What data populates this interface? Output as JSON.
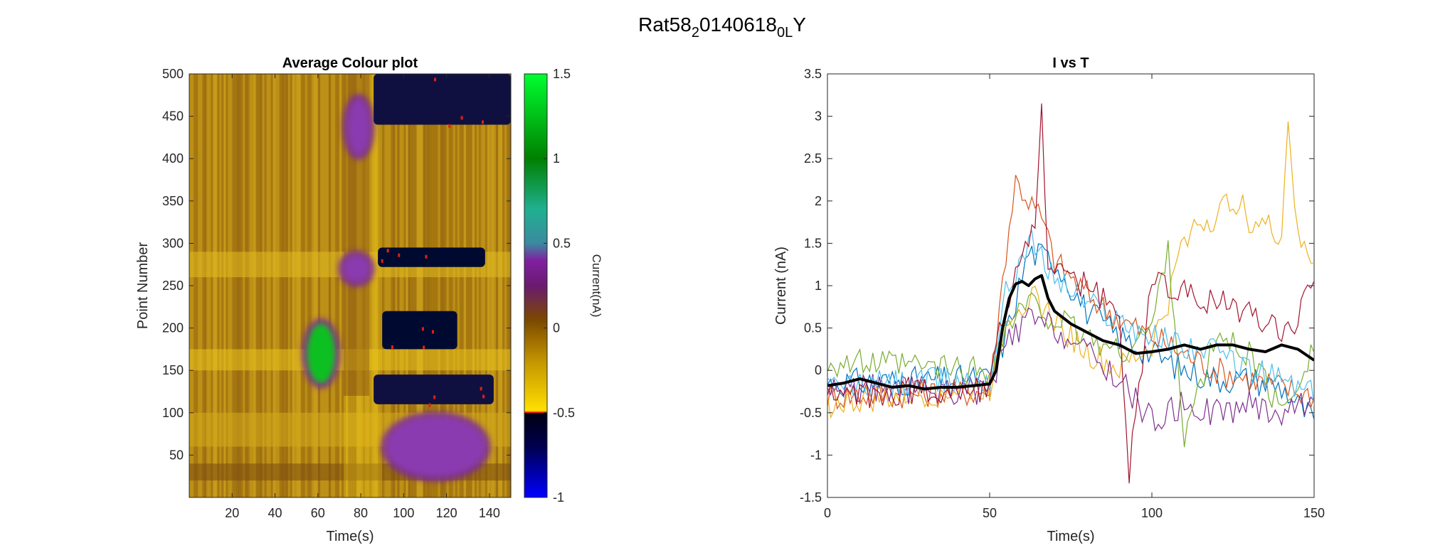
{
  "figure_title": {
    "base": "Rat58",
    "sub1": "2",
    "mid": "0140618",
    "sub2": "0L",
    "tail": "Y"
  },
  "chart_data": [
    {
      "type": "heatmap",
      "title": "Average Colour plot",
      "xlabel": "Time(s)",
      "ylabel": "Point Number",
      "xlim": [
        0,
        150
      ],
      "ylim": [
        0,
        500
      ],
      "xticks": [
        20,
        40,
        60,
        80,
        100,
        120,
        140
      ],
      "yticks": [
        50,
        100,
        150,
        200,
        250,
        300,
        350,
        400,
        450,
        500
      ],
      "colorbar": {
        "label": "Current(nA)",
        "range": [
          -1,
          1.5
        ],
        "ticks": [
          -1,
          -0.5,
          0,
          0.5,
          1,
          1.5
        ]
      },
      "regions": [
        {
          "t": [
            55,
            68
          ],
          "p": [
            135,
            205
          ],
          "value": 1.2
        },
        {
          "t": [
            72,
            84
          ],
          "p": [
            255,
            285
          ],
          "value": 0.4
        },
        {
          "t": [
            74,
            84
          ],
          "p": [
            405,
            470
          ],
          "value": 0.35
        },
        {
          "t": [
            88,
            138
          ],
          "p": [
            272,
            295
          ],
          "value": -0.6
        },
        {
          "t": [
            90,
            125
          ],
          "p": [
            175,
            220
          ],
          "value": -0.6
        },
        {
          "t": [
            86,
            142
          ],
          "p": [
            110,
            145
          ],
          "value": -0.55
        },
        {
          "t": [
            92,
            138
          ],
          "p": [
            25,
            95
          ],
          "value": 0.45
        },
        {
          "t": [
            86,
            150
          ],
          "p": [
            440,
            500
          ],
          "value": -0.5
        }
      ],
      "grid": false
    },
    {
      "type": "line",
      "title": "I vs T",
      "xlabel": "Time(s)",
      "ylabel": "Current (nA)",
      "xlim": [
        0,
        150
      ],
      "ylim": [
        -1.5,
        3.5
      ],
      "xticks": [
        0,
        50,
        100,
        150
      ],
      "yticks": [
        -1.5,
        -1,
        -0.5,
        0,
        0.5,
        1,
        1.5,
        2,
        2.5,
        3,
        3.5
      ],
      "grid": false,
      "mean_trace": {
        "color": "#000000",
        "x": [
          0,
          5,
          10,
          15,
          20,
          25,
          30,
          35,
          40,
          45,
          50,
          52,
          54,
          56,
          58,
          60,
          62,
          64,
          66,
          68,
          70,
          75,
          80,
          85,
          90,
          95,
          100,
          105,
          110,
          115,
          120,
          125,
          130,
          135,
          140,
          145,
          150
        ],
        "y": [
          -0.18,
          -0.15,
          -0.1,
          -0.15,
          -0.2,
          -0.18,
          -0.22,
          -0.2,
          -0.2,
          -0.18,
          -0.16,
          0.0,
          0.5,
          0.85,
          1.02,
          1.05,
          1.0,
          1.08,
          1.12,
          0.85,
          0.7,
          0.55,
          0.45,
          0.35,
          0.3,
          0.2,
          0.22,
          0.25,
          0.3,
          0.25,
          0.3,
          0.3,
          0.25,
          0.22,
          0.3,
          0.25,
          0.12
        ]
      },
      "series": [
        {
          "color": "#0072BD",
          "x": [
            0,
            50,
            55,
            62,
            70,
            80,
            90,
            100,
            110,
            120,
            130,
            140,
            150
          ],
          "y": [
            -0.15,
            -0.1,
            0.4,
            1.4,
            1.3,
            0.7,
            0.4,
            0.2,
            0.0,
            -0.1,
            -0.1,
            -0.2,
            -0.6
          ]
        },
        {
          "color": "#D95319",
          "x": [
            0,
            50,
            55,
            58,
            62,
            66,
            70,
            80,
            90,
            100,
            110,
            120,
            130,
            140,
            150
          ],
          "y": [
            -0.3,
            -0.25,
            1.4,
            2.25,
            2.0,
            1.8,
            1.3,
            0.9,
            0.6,
            0.4,
            0.2,
            0.0,
            -0.1,
            -0.2,
            -0.3
          ]
        },
        {
          "color": "#EDB120",
          "x": [
            0,
            50,
            55,
            62,
            70,
            80,
            90,
            100,
            105,
            110,
            115,
            120,
            125,
            130,
            135,
            140,
            142,
            145,
            150
          ],
          "y": [
            -0.4,
            -0.2,
            0.6,
            0.9,
            0.6,
            0.2,
            0.0,
            0.3,
            0.8,
            1.6,
            1.75,
            1.8,
            2.05,
            1.8,
            1.7,
            1.6,
            3.0,
            1.5,
            1.3
          ]
        },
        {
          "color": "#7E2F8E",
          "x": [
            0,
            50,
            55,
            62,
            70,
            80,
            90,
            100,
            110,
            120,
            130,
            140,
            150
          ],
          "y": [
            -0.2,
            -0.25,
            0.3,
            0.6,
            0.5,
            0.2,
            -0.1,
            -0.6,
            -0.4,
            -0.5,
            -0.4,
            -0.5,
            -0.3
          ]
        },
        {
          "color": "#77AC30",
          "x": [
            0,
            50,
            55,
            62,
            70,
            80,
            90,
            100,
            105,
            110,
            120,
            130,
            140,
            150
          ],
          "y": [
            0.1,
            0.0,
            0.5,
            0.8,
            0.6,
            0.4,
            0.2,
            0.5,
            1.5,
            -0.8,
            0.4,
            0.2,
            -0.5,
            0.3
          ]
        },
        {
          "color": "#4DBEEE",
          "x": [
            0,
            50,
            55,
            62,
            70,
            80,
            90,
            100,
            110,
            120,
            130,
            140,
            150
          ],
          "y": [
            -0.2,
            -0.1,
            0.9,
            1.55,
            1.1,
            0.8,
            0.6,
            0.4,
            0.3,
            0.2,
            0.0,
            -0.1,
            -0.3
          ]
        },
        {
          "color": "#A2142F",
          "x": [
            0,
            50,
            55,
            60,
            64,
            66,
            68,
            72,
            80,
            90,
            93,
            100,
            110,
            120,
            130,
            140,
            145,
            150
          ],
          "y": [
            -0.3,
            -0.2,
            0.8,
            1.4,
            1.6,
            3.15,
            1.3,
            1.1,
            1.0,
            0.6,
            -1.2,
            1.1,
            0.9,
            0.8,
            0.7,
            0.5,
            0.6,
            1.2
          ]
        }
      ]
    }
  ]
}
